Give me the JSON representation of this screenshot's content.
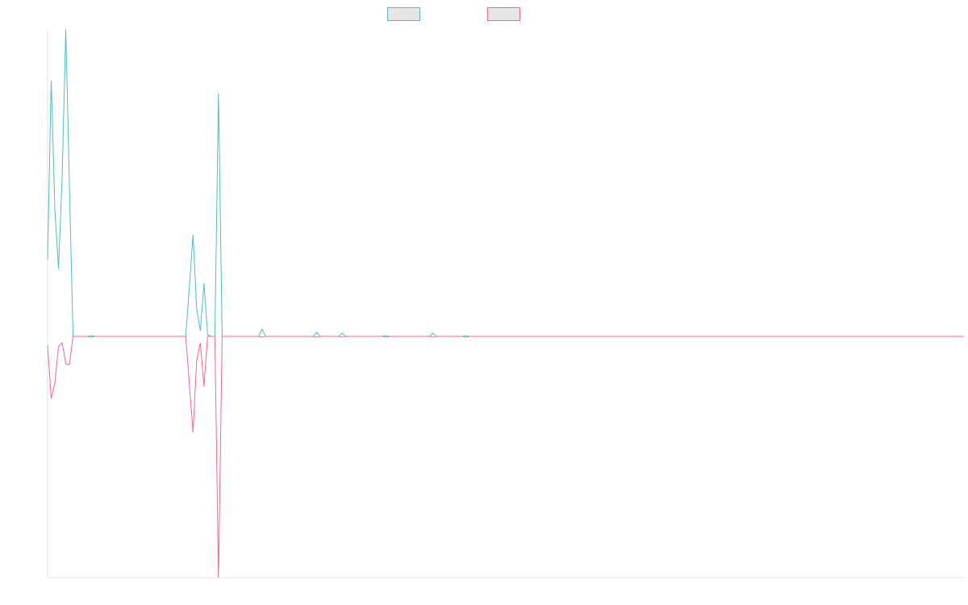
{
  "chart_data": {
    "type": "line",
    "x": [
      0,
      1,
      2,
      3,
      4,
      5,
      6,
      7,
      11,
      12,
      13,
      37,
      38,
      39,
      40,
      41,
      42,
      43,
      44,
      45,
      46,
      47,
      48,
      58,
      59,
      60,
      73,
      74,
      75,
      80,
      81,
      82,
      92,
      93,
      94,
      105,
      106,
      107,
      114,
      115,
      116,
      252
    ],
    "series": [
      {
        "color": "#4bc0c0",
        "values": [
          95,
          317,
          157,
          84,
          197,
          381,
          187,
          0,
          0,
          1,
          0,
          0,
          0,
          62,
          126,
          34,
          7,
          66,
          2,
          0,
          0,
          301,
          0,
          0,
          9,
          0,
          0,
          5,
          0,
          0,
          4,
          0,
          0,
          1,
          0,
          0,
          4,
          0,
          0,
          1,
          0,
          0
        ]
      },
      {
        "color": "#ff6384",
        "values": [
          -11,
          -77,
          -58,
          -13,
          -8,
          -34,
          -35,
          0,
          0,
          -1,
          0,
          0,
          0,
          -60,
          -119,
          -30,
          -8,
          -62,
          0,
          0,
          0,
          -299,
          0,
          0,
          -1,
          0,
          0,
          -1,
          0,
          0,
          -1,
          0,
          0,
          -1,
          0,
          0,
          -1,
          0,
          0,
          -1,
          0,
          0
        ]
      }
    ],
    "xlim": [
      0,
      252
    ],
    "ylim": [
      -299,
      381
    ]
  }
}
